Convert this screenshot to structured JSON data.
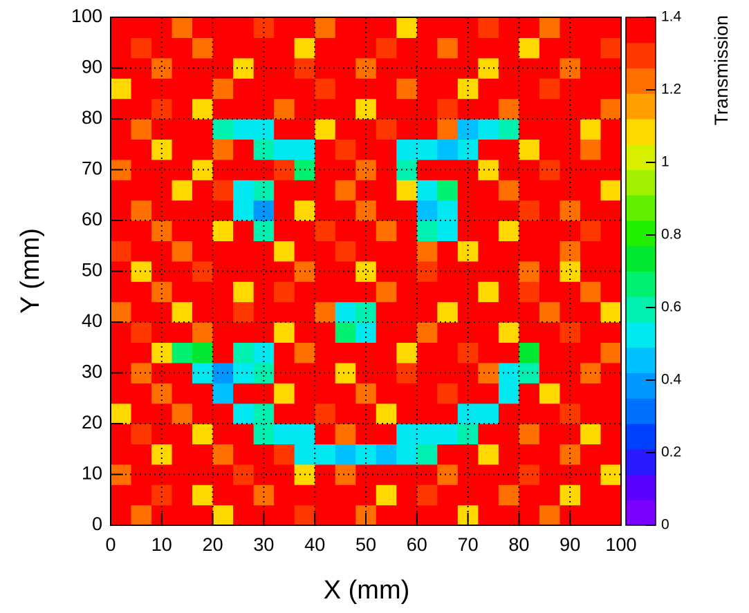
{
  "chart_data": {
    "type": "heatmap",
    "x_label": "X (mm)",
    "y_label": "Y (mm)",
    "z_label": "Transmission",
    "xbins": [
      0,
      4,
      8,
      12,
      16,
      20,
      24,
      28,
      32,
      36,
      40,
      44,
      48,
      52,
      56,
      60,
      64,
      68,
      72,
      76,
      80,
      84,
      88,
      92,
      96,
      100
    ],
    "ybins": [
      0,
      4,
      8,
      12,
      16,
      20,
      24,
      28,
      32,
      36,
      40,
      44,
      48,
      52,
      56,
      60,
      64,
      68,
      72,
      76,
      80,
      84,
      88,
      92,
      96,
      100
    ],
    "values": [
      [
        1.4,
        1.2,
        1.4,
        1.4,
        1.4,
        1.1,
        1.4,
        1.4,
        1.4,
        1.3,
        1.4,
        1.4,
        1.2,
        1.4,
        1.4,
        1.4,
        1.4,
        1.1,
        1.4,
        1.4,
        1.4,
        1.2,
        1.4,
        1.4,
        1.4
      ],
      [
        1.4,
        1.4,
        1.3,
        1.4,
        1.1,
        1.4,
        1.4,
        1.2,
        1.4,
        1.4,
        1.4,
        1.4,
        1.4,
        1.1,
        1.4,
        1.3,
        1.4,
        1.4,
        1.4,
        1.2,
        1.4,
        1.4,
        1.1,
        1.4,
        1.4
      ],
      [
        1.2,
        1.4,
        1.4,
        1.4,
        1.4,
        1.4,
        1.3,
        1.4,
        1.4,
        1.1,
        1.4,
        1.2,
        1.4,
        1.4,
        1.4,
        1.4,
        1.2,
        1.4,
        1.4,
        1.4,
        1.3,
        1.4,
        1.4,
        1.4,
        1.1
      ],
      [
        1.4,
        1.4,
        1.1,
        1.4,
        1.4,
        1.2,
        1.4,
        1.4,
        1.3,
        0.55,
        0.5,
        0.45,
        0.5,
        0.48,
        0.52,
        0.6,
        1.4,
        1.4,
        1.1,
        1.4,
        1.4,
        1.4,
        1.2,
        1.4,
        1.4
      ],
      [
        1.4,
        1.3,
        1.4,
        1.4,
        1.1,
        1.4,
        1.4,
        0.6,
        0.5,
        0.55,
        1.4,
        1.2,
        1.4,
        1.4,
        0.55,
        0.5,
        0.55,
        0.6,
        1.4,
        1.4,
        1.2,
        1.4,
        1.4,
        1.1,
        1.4
      ],
      [
        1.1,
        1.4,
        1.4,
        1.2,
        1.4,
        1.4,
        0.5,
        0.6,
        1.4,
        1.4,
        1.3,
        1.4,
        1.4,
        1.1,
        1.4,
        1.4,
        1.4,
        0.5,
        0.55,
        1.4,
        1.4,
        1.4,
        1.3,
        1.4,
        1.4
      ],
      [
        1.4,
        1.4,
        1.2,
        1.4,
        1.4,
        0.45,
        1.4,
        1.4,
        1.1,
        1.4,
        1.4,
        1.4,
        1.2,
        1.4,
        1.4,
        1.4,
        1.3,
        1.4,
        1.4,
        0.5,
        1.4,
        1.1,
        1.4,
        1.4,
        1.4
      ],
      [
        1.4,
        1.2,
        1.4,
        1.4,
        0.55,
        0.4,
        0.5,
        0.6,
        1.4,
        1.4,
        1.4,
        1.1,
        1.4,
        1.4,
        1.3,
        1.4,
        1.4,
        1.4,
        1.2,
        0.55,
        0.6,
        1.4,
        1.4,
        1.2,
        1.4
      ],
      [
        1.4,
        1.4,
        1.1,
        0.65,
        0.7,
        1.4,
        0.6,
        0.55,
        1.4,
        1.2,
        1.4,
        1.4,
        1.4,
        1.4,
        1.1,
        1.4,
        1.4,
        1.3,
        1.4,
        1.4,
        0.7,
        1.4,
        1.4,
        1.4,
        1.2
      ],
      [
        1.4,
        1.3,
        1.4,
        1.4,
        1.2,
        1.4,
        1.4,
        1.4,
        1.1,
        1.4,
        1.4,
        0.65,
        0.55,
        1.4,
        1.4,
        1.2,
        1.4,
        1.4,
        1.4,
        1.1,
        1.4,
        1.4,
        1.3,
        1.4,
        1.4
      ],
      [
        1.2,
        1.4,
        1.4,
        1.1,
        1.4,
        1.4,
        1.3,
        1.4,
        1.4,
        1.4,
        1.2,
        0.5,
        0.6,
        1.4,
        1.4,
        1.4,
        1.1,
        1.4,
        1.4,
        1.4,
        1.4,
        1.2,
        1.4,
        1.4,
        1.1
      ],
      [
        1.4,
        1.4,
        1.2,
        1.4,
        1.4,
        1.4,
        1.1,
        1.4,
        1.3,
        1.4,
        1.4,
        1.4,
        1.4,
        1.2,
        1.4,
        1.4,
        1.4,
        1.4,
        1.1,
        1.4,
        1.3,
        1.4,
        1.4,
        1.2,
        1.4
      ],
      [
        1.4,
        1.1,
        1.4,
        1.4,
        1.3,
        1.4,
        1.4,
        1.4,
        1.4,
        1.2,
        1.4,
        1.4,
        1.1,
        1.4,
        1.4,
        1.3,
        1.4,
        1.4,
        1.4,
        1.4,
        1.2,
        1.4,
        1.1,
        1.4,
        1.4
      ],
      [
        1.3,
        1.4,
        1.4,
        1.2,
        1.4,
        1.4,
        1.4,
        1.4,
        1.1,
        1.4,
        1.4,
        1.3,
        1.4,
        1.4,
        1.4,
        1.2,
        1.4,
        1.1,
        1.4,
        1.4,
        1.4,
        1.4,
        1.2,
        1.4,
        1.4
      ],
      [
        1.4,
        1.4,
        1.2,
        1.4,
        1.4,
        1.1,
        1.4,
        0.6,
        1.4,
        1.4,
        1.3,
        1.4,
        1.4,
        1.2,
        1.4,
        0.6,
        0.55,
        1.4,
        1.4,
        1.1,
        1.4,
        1.4,
        1.4,
        1.3,
        1.4
      ],
      [
        1.4,
        1.2,
        1.4,
        1.4,
        1.4,
        1.4,
        0.5,
        0.4,
        1.4,
        1.1,
        1.4,
        1.4,
        1.2,
        1.4,
        1.4,
        0.45,
        0.5,
        1.4,
        1.4,
        1.4,
        1.3,
        1.4,
        1.2,
        1.4,
        1.4
      ],
      [
        1.4,
        1.4,
        1.4,
        1.1,
        1.4,
        1.3,
        0.55,
        0.6,
        1.4,
        1.4,
        1.4,
        1.2,
        1.4,
        1.4,
        1.1,
        0.55,
        0.65,
        1.4,
        1.4,
        1.2,
        1.4,
        1.4,
        1.4,
        1.4,
        1.1
      ],
      [
        1.2,
        1.4,
        1.4,
        1.4,
        1.1,
        1.4,
        1.4,
        1.4,
        1.3,
        0.65,
        1.4,
        1.4,
        1.2,
        1.4,
        0.6,
        1.4,
        1.4,
        1.4,
        1.1,
        1.4,
        1.4,
        1.3,
        1.4,
        1.4,
        1.4
      ],
      [
        1.4,
        1.4,
        1.1,
        1.4,
        1.4,
        1.2,
        1.4,
        0.6,
        0.5,
        0.55,
        1.4,
        1.3,
        1.4,
        1.4,
        0.55,
        0.5,
        0.45,
        0.5,
        1.4,
        1.4,
        1.1,
        1.4,
        1.4,
        1.2,
        1.4
      ],
      [
        1.4,
        1.2,
        1.4,
        1.4,
        1.4,
        0.6,
        0.5,
        0.55,
        1.4,
        1.4,
        1.1,
        1.4,
        1.4,
        1.3,
        1.4,
        1.4,
        1.2,
        0.45,
        0.55,
        0.6,
        1.4,
        1.4,
        1.4,
        1.1,
        1.4
      ],
      [
        1.4,
        1.4,
        1.3,
        1.4,
        1.1,
        1.4,
        1.4,
        1.4,
        1.2,
        1.4,
        1.4,
        1.4,
        1.1,
        1.4,
        1.4,
        1.4,
        1.3,
        1.4,
        1.4,
        1.2,
        1.4,
        1.4,
        1.4,
        1.4,
        1.2
      ],
      [
        1.1,
        1.4,
        1.4,
        1.4,
        1.4,
        1.2,
        1.4,
        1.4,
        1.4,
        1.4,
        1.3,
        1.4,
        1.4,
        1.4,
        1.2,
        1.4,
        1.4,
        1.1,
        1.4,
        1.4,
        1.4,
        1.3,
        1.4,
        1.4,
        1.4
      ],
      [
        1.4,
        1.4,
        1.2,
        1.4,
        1.4,
        1.4,
        1.1,
        1.4,
        1.4,
        1.3,
        1.4,
        1.4,
        1.2,
        1.4,
        1.4,
        1.4,
        1.4,
        1.4,
        1.1,
        1.4,
        1.4,
        1.4,
        1.2,
        1.4,
        1.4
      ],
      [
        1.4,
        1.3,
        1.4,
        1.4,
        1.2,
        1.4,
        1.4,
        1.4,
        1.4,
        1.1,
        1.4,
        1.4,
        1.4,
        1.3,
        1.4,
        1.4,
        1.2,
        1.4,
        1.4,
        1.4,
        1.1,
        1.4,
        1.4,
        1.4,
        1.3
      ],
      [
        1.4,
        1.4,
        1.4,
        1.2,
        1.4,
        1.4,
        1.4,
        1.3,
        1.4,
        1.4,
        1.2,
        1.4,
        1.4,
        1.4,
        1.1,
        1.4,
        1.4,
        1.4,
        1.3,
        1.4,
        1.4,
        1.2,
        1.4,
        1.4,
        1.4
      ]
    ],
    "xlim": [
      0,
      100
    ],
    "ylim": [
      0,
      100
    ],
    "zlim": [
      0,
      1.4
    ],
    "xticks": [
      0,
      10,
      20,
      30,
      40,
      50,
      60,
      70,
      80,
      90,
      100
    ],
    "yticks": [
      0,
      10,
      20,
      30,
      40,
      50,
      60,
      70,
      80,
      90,
      100
    ],
    "zticks": [
      0,
      0.2,
      0.4,
      0.6,
      0.8,
      1,
      1.2,
      1.4
    ],
    "grid": true,
    "colors": [
      "#7a00ff",
      "#5a00ff",
      "#2a1aff",
      "#0040ff",
      "#0070ff",
      "#0098ff",
      "#00c0ff",
      "#00e8f0",
      "#00f0b0",
      "#00f070",
      "#00e830",
      "#20f000",
      "#60f000",
      "#a0f000",
      "#d8f000",
      "#ffd800",
      "#ffa000",
      "#ff7000",
      "#ff3800",
      "#ff0000"
    ]
  }
}
